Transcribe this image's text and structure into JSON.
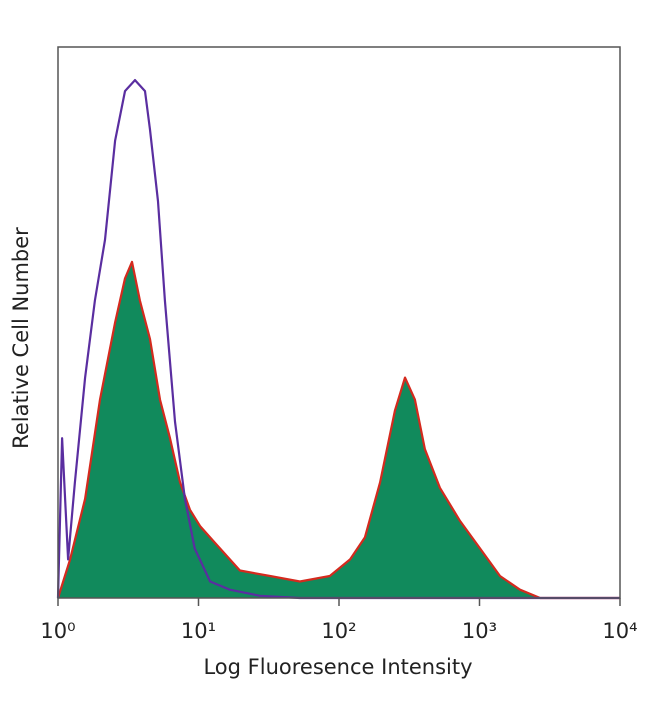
{
  "chart_data": {
    "type": "histogram-overlay",
    "xlabel": "Log Fluoresence Intensity",
    "ylabel": "Relative Cell Number",
    "log_x": true,
    "xlim": [
      1,
      10000
    ],
    "ylim": [
      0,
      100
    ],
    "xticks": [
      {
        "value": 1,
        "label": "10⁰"
      },
      {
        "value": 10,
        "label": "10¹"
      },
      {
        "value": 100,
        "label": "10²"
      },
      {
        "value": 1000,
        "label": "10³"
      },
      {
        "value": 10000,
        "label": "10⁴"
      }
    ],
    "series": [
      {
        "fill": "#118a5c",
        "color": "#d42a1e",
        "x": [
          1,
          1.22,
          1.56,
          1.99,
          2.55,
          3.0,
          3.36,
          3.83,
          4.52,
          5.32,
          6.27,
          7.38,
          8.7,
          10.3,
          13.1,
          19.7,
          32.3,
          52.7,
          86,
          120,
          153,
          196,
          250,
          295,
          347,
          409,
          523,
          726,
          1008,
          1400,
          1942,
          2698,
          10000
        ],
        "values": [
          0,
          7,
          18,
          36,
          50,
          58,
          61,
          54,
          47,
          36,
          29,
          21,
          16,
          13,
          10,
          5,
          4,
          3,
          4,
          7,
          11,
          21,
          34,
          40,
          36,
          27,
          20,
          14,
          9,
          4,
          1.5,
          0,
          0
        ]
      },
      {
        "color": "#5a2ea0",
        "x": [
          1,
          1.07,
          1.18,
          1.32,
          1.56,
          1.83,
          2.16,
          2.55,
          3.0,
          3.53,
          4.16,
          4.52,
          5.15,
          5.77,
          6.8,
          8.0,
          9.4,
          12.1,
          16.7,
          27.4,
          52.7,
          10000
        ],
        "values": [
          0,
          29,
          7,
          21,
          40,
          54,
          65,
          83,
          92,
          94,
          92,
          85,
          72,
          54,
          32,
          18,
          9,
          3,
          1.5,
          0.4,
          0,
          0
        ]
      }
    ]
  }
}
